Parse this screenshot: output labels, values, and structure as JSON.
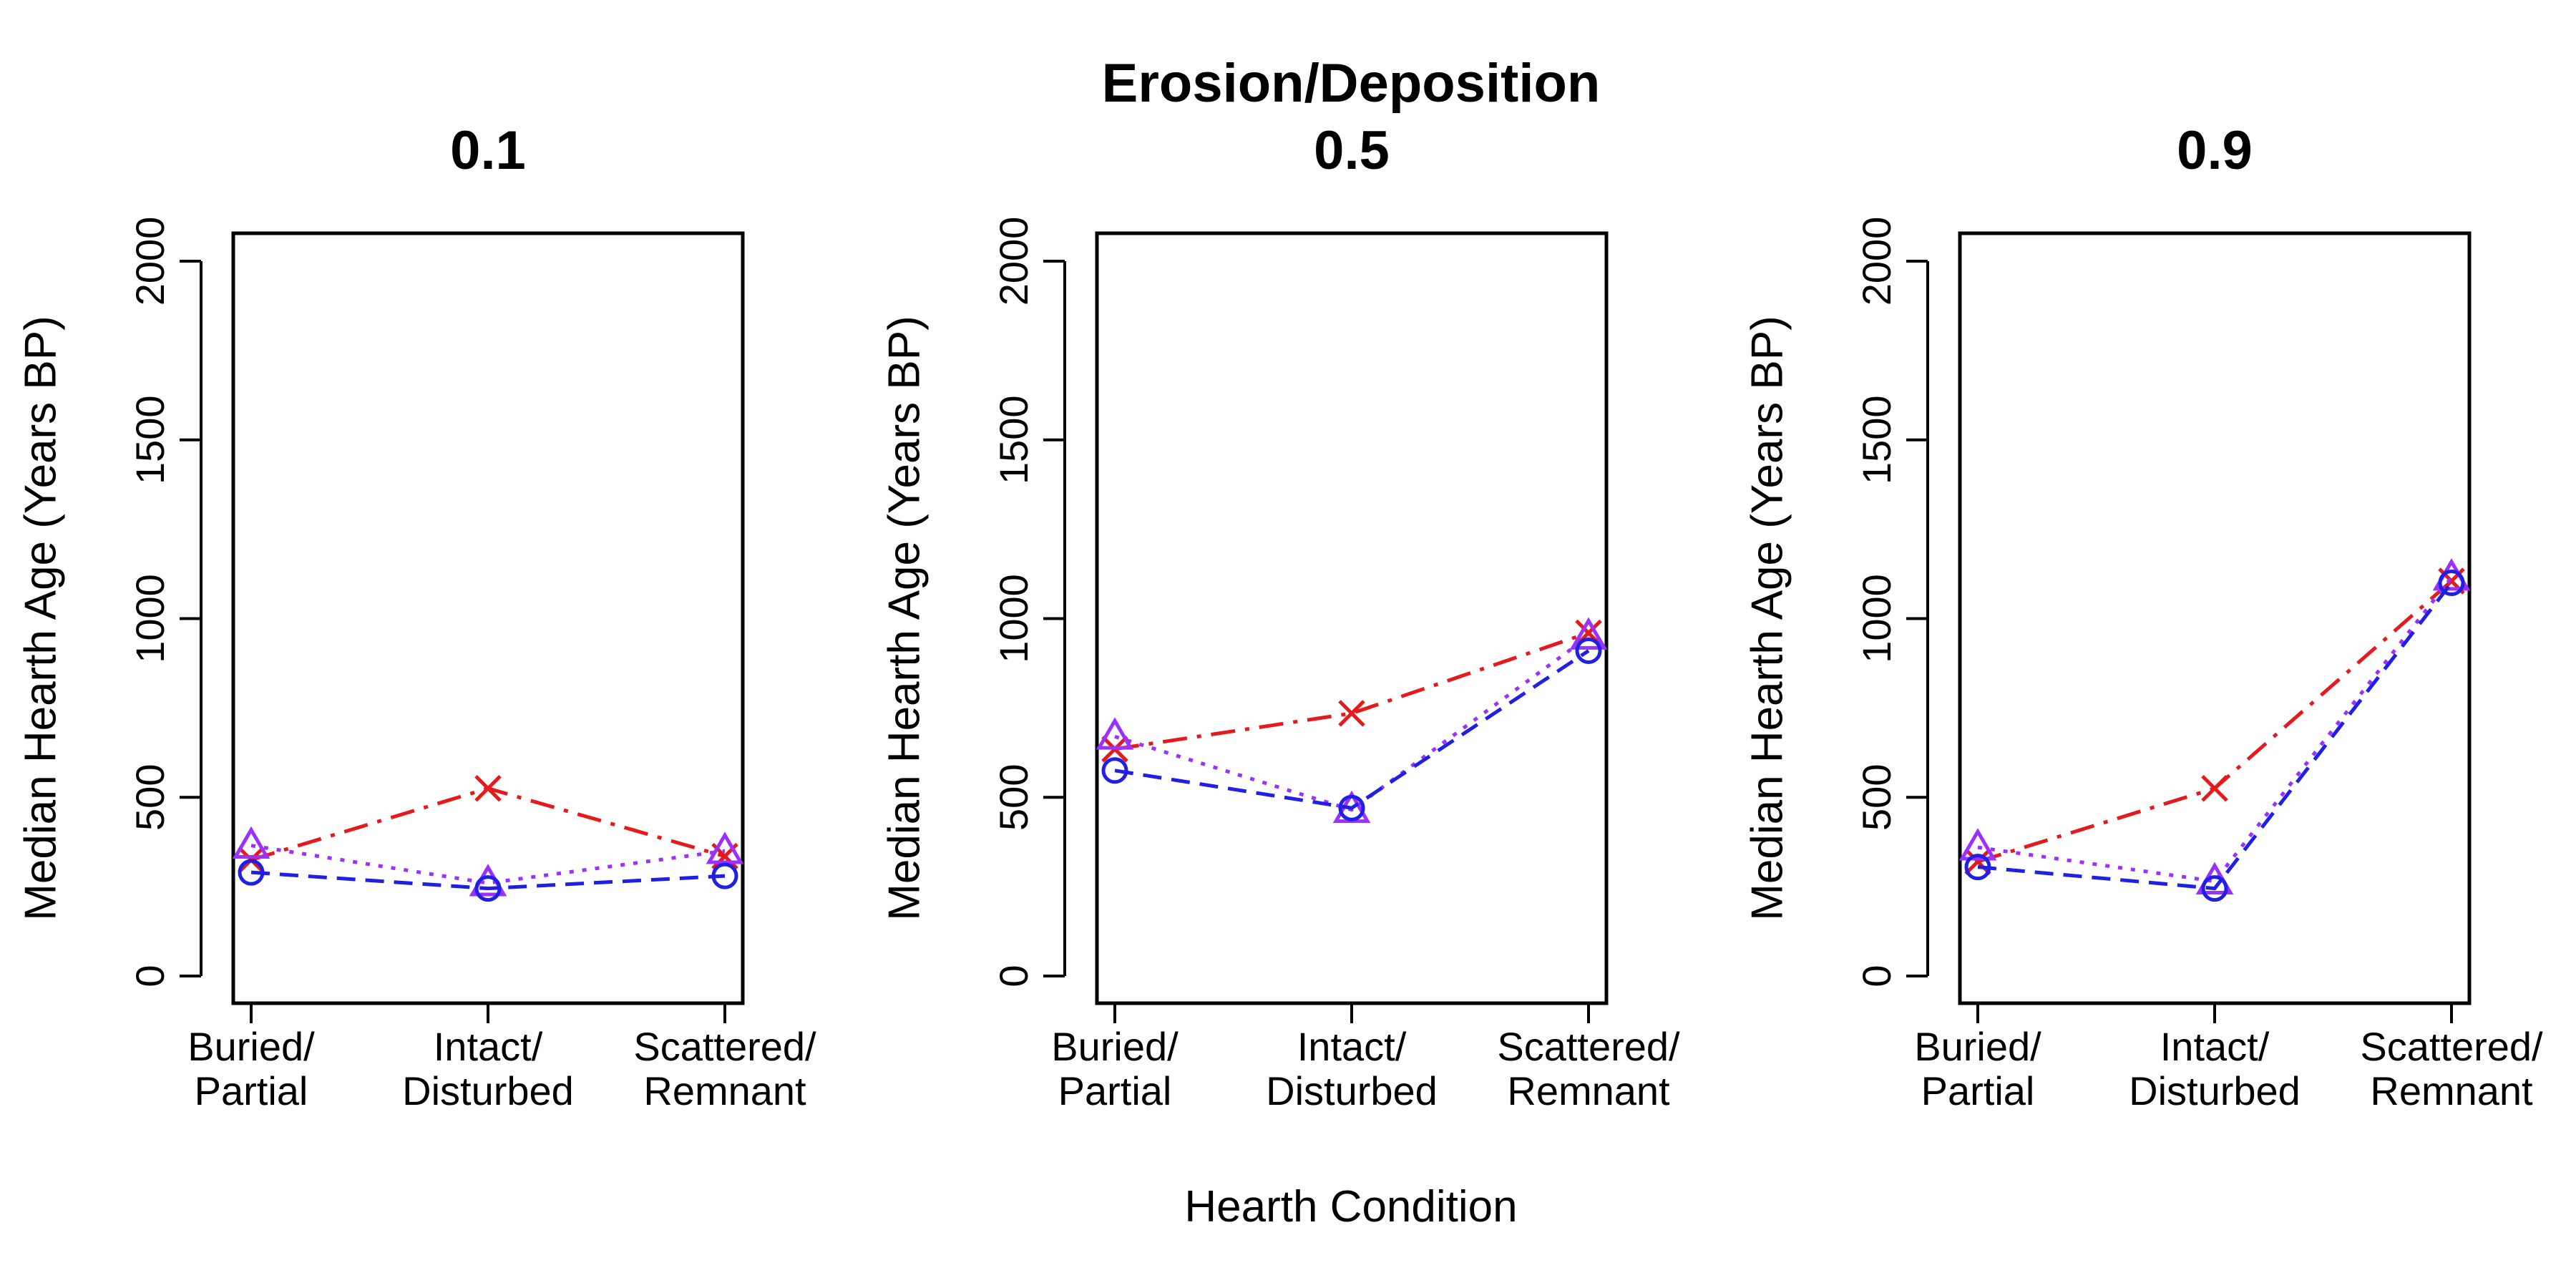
{
  "title": "Erosion/Deposition",
  "xlabel": "Hearth Condition",
  "chart_data": [
    {
      "type": "line",
      "title": "0.1",
      "ylabel": "Median Hearth Age (Years BP)",
      "ylim": [
        0,
        2000
      ],
      "yticks": [
        "0",
        "500",
        "1000",
        "1500",
        "2000"
      ],
      "categories": [
        "Buried/\nPartial",
        "Intact/\nDisturbed",
        "Scattered/\nRemnant"
      ],
      "series": [
        {
          "color": "#e41a1c",
          "marker": "x",
          "dash": "dashdot",
          "values": [
            325,
            525,
            335
          ]
        },
        {
          "color": "#9b30ff",
          "marker": "triangle",
          "dash": "dotted",
          "values": [
            365,
            260,
            350
          ]
        },
        {
          "color": "#1f1fe6",
          "marker": "circle",
          "dash": "dashed",
          "values": [
            290,
            245,
            280
          ]
        }
      ]
    },
    {
      "type": "line",
      "title": "0.5",
      "ylabel": "Median Hearth Age (Years BP)",
      "ylim": [
        0,
        2000
      ],
      "yticks": [
        "0",
        "500",
        "1000",
        "1500",
        "2000"
      ],
      "categories": [
        "Buried/\nPartial",
        "Intact/\nDisturbed",
        "Scattered/\nRemnant"
      ],
      "series": [
        {
          "color": "#e41a1c",
          "marker": "x",
          "dash": "dashdot",
          "values": [
            635,
            735,
            960
          ]
        },
        {
          "color": "#9b30ff",
          "marker": "triangle",
          "dash": "dotted",
          "values": [
            670,
            465,
            950
          ]
        },
        {
          "color": "#1f1fe6",
          "marker": "circle",
          "dash": "dashed",
          "values": [
            575,
            470,
            910
          ]
        }
      ]
    },
    {
      "type": "line",
      "title": "0.9",
      "ylabel": "Median Hearth Age (Years BP)",
      "ylim": [
        0,
        2000
      ],
      "yticks": [
        "0",
        "500",
        "1000",
        "1500",
        "2000"
      ],
      "categories": [
        "Buried/\nPartial",
        "Intact/\nDisturbed",
        "Scattered/\nRemnant"
      ],
      "series": [
        {
          "color": "#e41a1c",
          "marker": "x",
          "dash": "dashdot",
          "values": [
            320,
            525,
            1105
          ]
        },
        {
          "color": "#9b30ff",
          "marker": "triangle",
          "dash": "dotted",
          "values": [
            360,
            265,
            1115
          ]
        },
        {
          "color": "#1f1fe6",
          "marker": "circle",
          "dash": "dashed",
          "values": [
            305,
            245,
            1100
          ]
        }
      ]
    }
  ]
}
